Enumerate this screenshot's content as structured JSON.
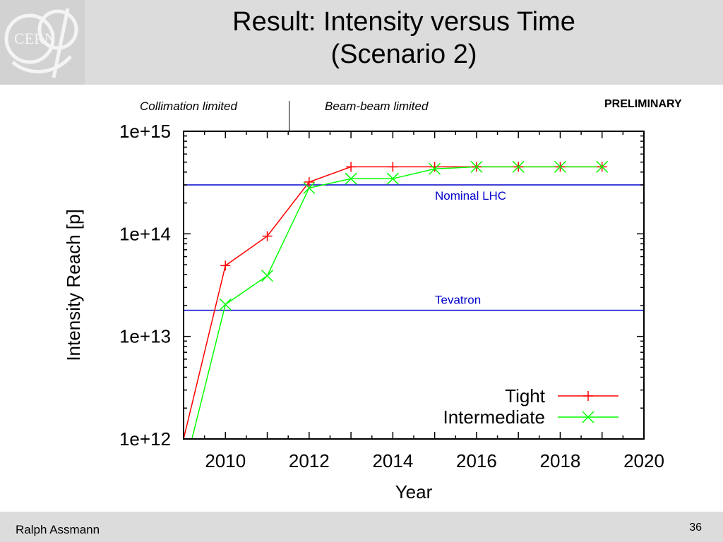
{
  "slide": {
    "title_line1": "Result: Intensity versus Time",
    "title_line2": "(Scenario 2)",
    "author": "Ralph Assmann",
    "page_number": "36",
    "preliminary": "PRELIMINARY",
    "note_left": "Collimation limited",
    "note_right": "Beam-beam limited",
    "logo_text": "CERN"
  },
  "colors": {
    "header_bg": "#dcdcdc",
    "tight": "#ff0000",
    "intermediate": "#00ff00",
    "reference": "#0000cc"
  },
  "chart_data": {
    "type": "line",
    "title": "",
    "xlabel": "Year",
    "ylabel": "Intensity Reach [p]",
    "xlim": [
      2009,
      2020
    ],
    "ylim": [
      1000000000000.0,
      1000000000000000.0
    ],
    "yscale": "log",
    "grid": false,
    "legend": "bottom-right",
    "x_ticks": [
      2010,
      2012,
      2014,
      2016,
      2018,
      2020
    ],
    "x_tick_labels": [
      "2010",
      "2012",
      "2014",
      "2016",
      "2018",
      "2020"
    ],
    "y_ticks": [
      1000000000000.0,
      10000000000000.0,
      100000000000000.0,
      1000000000000000.0
    ],
    "y_tick_labels": [
      "1e+12",
      "1e+13",
      "1e+14",
      "1e+15"
    ],
    "series": [
      {
        "name": "Tight",
        "marker": "plus",
        "x": [
          2009,
          2010,
          2011,
          2012,
          2013,
          2014,
          2015,
          2016,
          2017,
          2018,
          2019
        ],
        "y": [
          1000000000000.0,
          49000000000000.0,
          95000000000000.0,
          320000000000000.0,
          450000000000000.0,
          450000000000000.0,
          450000000000000.0,
          450000000000000.0,
          450000000000000.0,
          450000000000000.0,
          450000000000000.0
        ]
      },
      {
        "name": "Intermediate",
        "marker": "cross",
        "x": [
          2009.2,
          2010,
          2011,
          2012,
          2013,
          2014,
          2015,
          2016,
          2017,
          2018,
          2019
        ],
        "y": [
          1000000000000.0,
          20500000000000.0,
          39000000000000.0,
          280000000000000.0,
          345000000000000.0,
          345000000000000.0,
          430000000000000.0,
          450000000000000.0,
          450000000000000.0,
          450000000000000.0,
          450000000000000.0
        ]
      }
    ],
    "reference_lines": [
      {
        "label": "Nominal LHC",
        "y": 300000000000000.0
      },
      {
        "label": "Tevatron",
        "y": 18000000000000.0
      }
    ]
  }
}
